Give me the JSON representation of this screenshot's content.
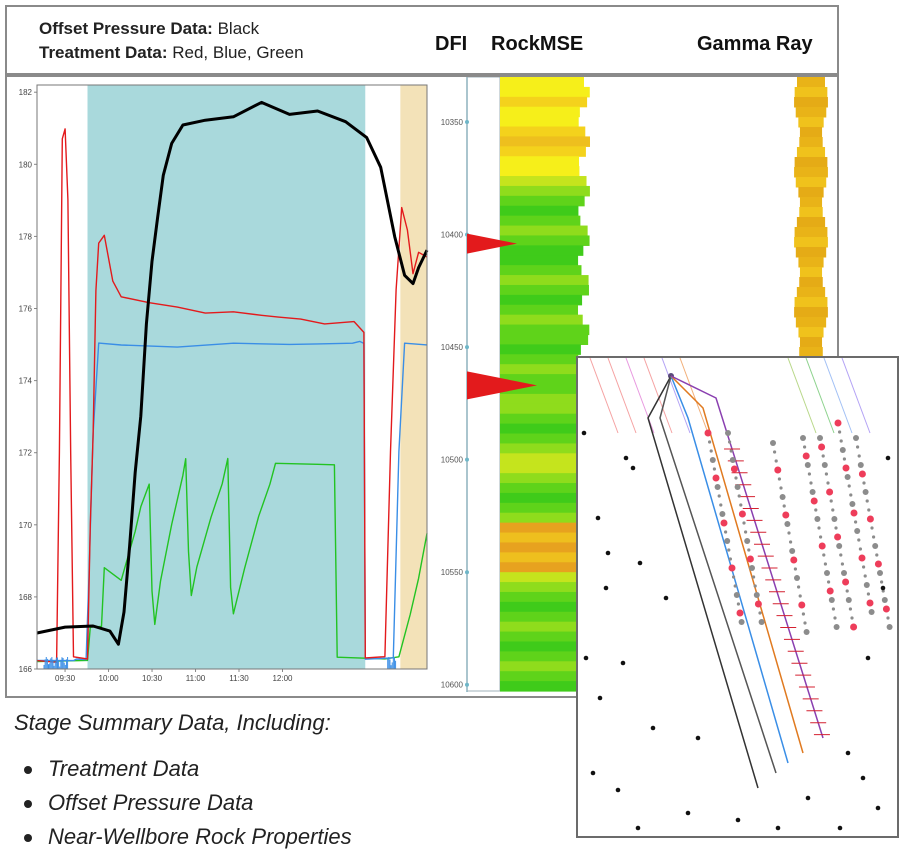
{
  "header": {
    "offset_label": "Offset Pressure Data:",
    "offset_value": "Black",
    "treatment_label": "Treatment Data:",
    "treatment_value": "Red, Blue, Green",
    "col_dfi": "DFI",
    "col_rockmse": "RockMSE",
    "col_gamma": "Gamma Ray"
  },
  "summary": {
    "heading": "Stage Summary Data, Including:",
    "items": [
      "Treatment Data",
      "Offset Pressure Data",
      "Near-Wellbore Rock Properties"
    ]
  },
  "colors": {
    "offset": "#000000",
    "treatment_red": "#e31a1c",
    "treatment_blue": "#3a8ee6",
    "treatment_green": "#22c322",
    "stage_band": "#a9d9dc",
    "tail_band": "#f3e2b8"
  },
  "chart_data": [
    {
      "type": "line",
      "x_ticks": [
        "09:30",
        "10:00",
        "10:30",
        "11:00",
        "11:30",
        "12:00"
      ],
      "y_ticks": [
        166,
        168,
        170,
        172,
        174,
        176,
        178,
        180,
        182
      ],
      "ylim": [
        166,
        182.2
      ],
      "series": [
        {
          "color": "#000000",
          "points": [
            [
              0,
              167.0
            ],
            [
              20,
              167.1
            ],
            [
              40,
              167.3
            ],
            [
              52,
              167.0
            ],
            [
              58,
              166.8
            ],
            [
              62,
              167.7
            ],
            [
              66,
              169.5
            ],
            [
              70,
              171.5
            ],
            [
              74,
              173.0
            ],
            [
              78,
              175.5
            ],
            [
              82,
              177.2
            ],
            [
              86,
              178.4
            ],
            [
              90,
              179.6
            ],
            [
              96,
              180.6
            ],
            [
              104,
              181.0
            ],
            [
              120,
              181.2
            ],
            [
              140,
              181.4
            ],
            [
              160,
              181.6
            ],
            [
              180,
              181.5
            ],
            [
              200,
              181.4
            ],
            [
              220,
              181.2
            ],
            [
              235,
              180.8
            ],
            [
              245,
              179.8
            ],
            [
              255,
              178.0
            ],
            [
              262,
              177.0
            ],
            [
              268,
              176.7
            ],
            [
              272,
              177.2
            ],
            [
              278,
              177.5
            ]
          ]
        },
        {
          "color": "#e31a1c",
          "points": [
            [
              0,
              166.2
            ],
            [
              14,
              166.2
            ],
            [
              16,
              172.0
            ],
            [
              18,
              180.7
            ],
            [
              20,
              181.0
            ],
            [
              22,
              179.0
            ],
            [
              24,
              172.0
            ],
            [
              26,
              166.3
            ],
            [
              36,
              166.3
            ],
            [
              38,
              170.0
            ],
            [
              40,
              172.5
            ],
            [
              42,
              176.5
            ],
            [
              44,
              177.8
            ],
            [
              48,
              178.0
            ],
            [
              54,
              176.8
            ],
            [
              60,
              176.3
            ],
            [
              80,
              176.2
            ],
            [
              100,
              176.0
            ],
            [
              120,
              175.9
            ],
            [
              140,
              175.9
            ],
            [
              160,
              175.8
            ],
            [
              172,
              175.8
            ],
            [
              188,
              175.7
            ],
            [
              205,
              175.6
            ],
            [
              226,
              175.6
            ],
            [
              233,
              175.3
            ],
            [
              234,
              166.3
            ],
            [
              248,
              166.3
            ],
            [
              252,
              172.0
            ],
            [
              256,
              176.5
            ],
            [
              260,
              178.8
            ],
            [
              264,
              178.2
            ],
            [
              268,
              177.0
            ],
            [
              272,
              177.6
            ],
            [
              278,
              177.4
            ]
          ]
        },
        {
          "color": "#3a8ee6",
          "points": [
            [
              0,
              166.2
            ],
            [
              26,
              166.2
            ],
            [
              28,
              166.3
            ],
            [
              35,
              166.3
            ],
            [
              37,
              168.5
            ],
            [
              40,
              172.5
            ],
            [
              44,
              175.0
            ],
            [
              60,
              175.0
            ],
            [
              100,
              174.9
            ],
            [
              140,
              175.0
            ],
            [
              180,
              175.0
            ],
            [
              200,
              175.0
            ],
            [
              225,
              175.0
            ],
            [
              230,
              175.1
            ],
            [
              233,
              175.0
            ],
            [
              234,
              166.3
            ],
            [
              254,
              166.3
            ],
            [
              258,
              172.0
            ],
            [
              262,
              175.0
            ],
            [
              278,
              175.0
            ]
          ]
        },
        {
          "color": "#22c322",
          "points": [
            [
              0,
              166.2
            ],
            [
              36,
              166.2
            ],
            [
              38,
              167.2
            ],
            [
              46,
              167.2
            ],
            [
              48,
              168.8
            ],
            [
              60,
              168.5
            ],
            [
              70,
              169.8
            ],
            [
              74,
              170.5
            ],
            [
              80,
              171.1
            ],
            [
              82,
              168.2
            ],
            [
              84,
              167.2
            ],
            [
              88,
              168.4
            ],
            [
              96,
              170.0
            ],
            [
              104,
              171.4
            ],
            [
              106,
              171.8
            ],
            [
              108,
              169.3
            ],
            [
              110,
              168.0
            ],
            [
              114,
              168.8
            ],
            [
              124,
              170.2
            ],
            [
              132,
              171.1
            ],
            [
              136,
              171.8
            ],
            [
              138,
              168.3
            ],
            [
              140,
              167.5
            ],
            [
              148,
              168.8
            ],
            [
              158,
              170.2
            ],
            [
              166,
              171.1
            ],
            [
              170,
              171.7
            ],
            [
              200,
              171.7
            ],
            [
              212,
              171.7
            ],
            [
              214,
              166.3
            ],
            [
              248,
              166.3
            ],
            [
              258,
              166.3
            ],
            [
              266,
              167.5
            ],
            [
              272,
              168.5
            ],
            [
              278,
              169.8
            ]
          ]
        }
      ],
      "bands": [
        {
          "from": 36,
          "to": 234,
          "color": "#a9d9dc"
        },
        {
          "from": 259,
          "to": 278,
          "color": "#f3e2b8"
        }
      ]
    },
    {
      "type": "heatmap",
      "depth_ticks": [
        10350,
        10400,
        10450,
        10500,
        10550,
        10600
      ],
      "depth_range": [
        10330,
        10605
      ],
      "dfi_markers": [
        {
          "depth": 10404,
          "size": 1.0
        },
        {
          "depth": 10467,
          "size": 1.4
        }
      ]
    }
  ]
}
